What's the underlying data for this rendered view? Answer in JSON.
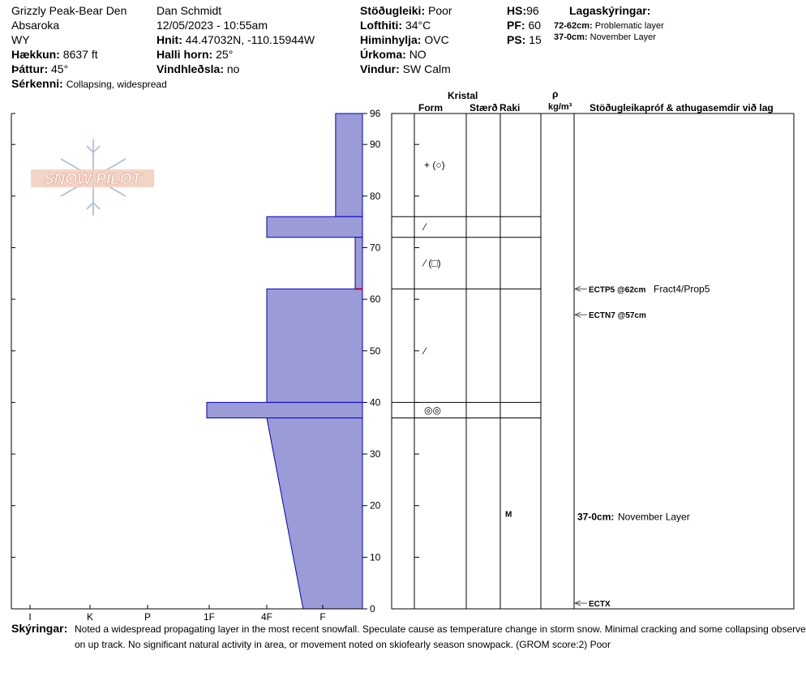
{
  "header": {
    "location": "Grizzly Peak-Bear Den",
    "range": "Absaroka",
    "state": "WY",
    "elevation_label": "Hækkun:",
    "elevation": "8637 ft",
    "aspect_label": "Þáttur:",
    "aspect": "45°",
    "features_label": "Sérkenni:",
    "features": "Collapsing, widespread",
    "observer": "Dan Schmidt",
    "datetime": "12/05/2023 - 10:55am",
    "coords_label": "Hnit:",
    "coords": "44.47032N, -110.15944W",
    "slope_label": "Halli horn:",
    "slope": "25°",
    "wind_loading_label": "Vindhleðsla:",
    "wind_loading": "no",
    "stability_label": "Stöðugleiki:",
    "stability": "Poor",
    "air_temp_label": "Lofthiti:",
    "air_temp": "34°C",
    "sky_label": "Himinhylja:",
    "sky": "OVC",
    "precip_label": "Úrkoma:",
    "precip": "NO",
    "wind_label": "Vindur:",
    "wind": "SW Calm",
    "hs_label": "HS:",
    "hs": "96",
    "pf_label": "PF:",
    "pf": "60",
    "ps_label": "PS:",
    "ps": "15",
    "layers_title": "Lagaskýringar:",
    "layer_notes": [
      {
        "range": "72-62cm:",
        "text": "Problematic layer"
      },
      {
        "range": "37-0cm:",
        "text": "November Layer"
      }
    ]
  },
  "logo_text": "SNOW PILOT",
  "columns": {
    "crystal": "Kristal",
    "form": "Form",
    "size": "Stærð",
    "moisture": "Raki",
    "rho": "ρ",
    "density_unit": "kg/m³",
    "tests": "Stöðugleikapróf & athugasemdir við lag"
  },
  "chart_data": {
    "type": "area",
    "ylim": [
      0,
      96
    ],
    "y_ticks": [
      0,
      10,
      20,
      30,
      40,
      50,
      60,
      70,
      80,
      90,
      96
    ],
    "hardness_ticks": [
      "I",
      "K",
      "P",
      "1F",
      "4F",
      "F"
    ],
    "fill_color": "#9b9bd7",
    "edge_color": "#0000c8",
    "layer_boundaries": [
      96,
      76,
      72,
      62,
      40,
      37,
      0
    ],
    "hardness_profile": [
      {
        "top": 96,
        "bottom": 76,
        "hardness": "F",
        "left_top": 5.23,
        "left_bottom": 5.23
      },
      {
        "top": 76,
        "bottom": 72,
        "hardness": "4F-",
        "left_top": 4.0,
        "left_bottom": 4.0
      },
      {
        "top": 72,
        "bottom": 62,
        "hardness": "F",
        "left_top": 5.58,
        "left_bottom": 5.58
      },
      {
        "top": 62,
        "bottom": 40,
        "hardness": "4F",
        "left_top": 4.0,
        "left_bottom": 4.0
      },
      {
        "top": 40,
        "bottom": 37,
        "hardness": "1F+",
        "left_top": 2.96,
        "left_bottom": 2.96
      },
      {
        "top": 37,
        "bottom": 0,
        "hardness": "4F to F",
        "left_top": 4.0,
        "left_bottom": 4.65
      }
    ],
    "red_marker_depth": 62,
    "crystal_forms": [
      {
        "depth": 86,
        "symbol": "+ (○)"
      },
      {
        "depth": 74,
        "symbol": "⁄"
      },
      {
        "depth": 67,
        "symbol": "⁄ (□)"
      },
      {
        "depth": 50,
        "symbol": "⁄"
      },
      {
        "depth": 38.5,
        "symbol": "◎◎"
      }
    ],
    "moisture": [
      {
        "depth": 18.5,
        "value": "M"
      }
    ],
    "stability_tests": [
      {
        "depth": 62,
        "label": "ECTP5 @62cm",
        "note": "Fract4/Prop5"
      },
      {
        "depth": 57,
        "label": "ECTN7 @57cm",
        "note": ""
      },
      {
        "depth": 0,
        "label": "ECTX",
        "note": ""
      }
    ],
    "layer_comment": {
      "depth": 18.5,
      "range": "37-0cm:",
      "text": "November Layer"
    }
  },
  "footer": {
    "label": "Skýringar:",
    "line1": "Noted a widespread propagating layer in the most recent snowfall. Speculate cause as temperature change in storm snow.  Minimal cracking and some collapsing observed",
    "line2": "on up track. No significant natural activity in area, or movement noted on skiofearly season snowpack. (GROM score:2) Poor"
  }
}
